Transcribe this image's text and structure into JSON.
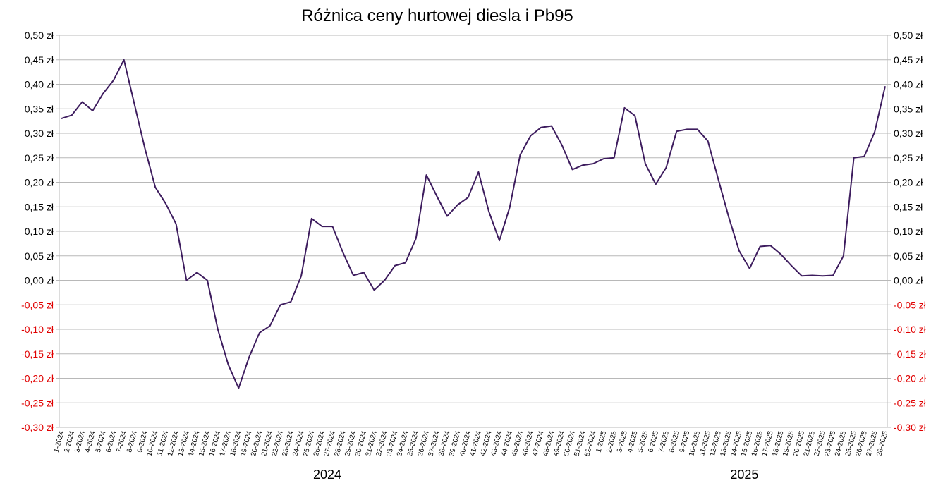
{
  "chart_data": {
    "type": "line",
    "title": "Różnica ceny hurtowej diesla i Pb95",
    "ylim": [
      -0.3,
      0.5
    ],
    "y_tick_step": 0.05,
    "y_tick_labels": [
      "0,50 zł",
      "0,45 zł",
      "0,40 zł",
      "0,35 zł",
      "0,30 zł",
      "0,25 zł",
      "0,20 zł",
      "0,15 zł",
      "0,10 zł",
      "0,05 zł",
      "0,00 zł",
      "-0,05 zł",
      "-0,10 zł",
      "-0,15 zł",
      "-0,20 zł",
      "-0,25 zł",
      "-0,30 zł"
    ],
    "y_axes": "left and right",
    "negative_label_color": "#e00000",
    "positive_label_color": "#000000",
    "line_color": "#3d1c5e",
    "grid": true,
    "categories": [
      "1-2024",
      "2-2024",
      "3-2024",
      "4-2024",
      "5-2024",
      "6-2024",
      "7-2024",
      "8-2024",
      "9-2024",
      "10-2024",
      "11-2024",
      "12-2024",
      "13-2024",
      "14-2024",
      "15-2024",
      "16-2024",
      "17-2024",
      "18-2024",
      "19-2024",
      "20-2024",
      "21-2024",
      "22-2024",
      "23-2024",
      "24-2024",
      "25-2024",
      "26-2024",
      "27-2024",
      "28-2024",
      "29-2024",
      "30-2024",
      "31-2024",
      "32-2024",
      "33-2024",
      "34-2024",
      "35-2024",
      "36-2024",
      "37-2024",
      "38-2024",
      "39-2024",
      "40-2024",
      "41-2024",
      "42-2024",
      "43-2024",
      "44-2024",
      "45-2024",
      "46-2024",
      "47-2024",
      "48-2024",
      "49-2024",
      "50-2024",
      "51-2024",
      "52-2024",
      "1-2025",
      "2-2025",
      "3-2025",
      "4-2025",
      "5-2025",
      "6-2025",
      "7-2025",
      "8-2025",
      "9-2025",
      "10-2025",
      "11-2025",
      "12-2025",
      "13-2025",
      "14-2025",
      "15-2025",
      "16-2025",
      "17-2025",
      "18-2025",
      "19-2025",
      "20-2025",
      "21-2025",
      "22-2025",
      "23-2025",
      "24-2025",
      "25-2025",
      "26-2025",
      "27-2025",
      "28-2025"
    ],
    "series": [
      {
        "values": [
          0.33,
          0.337,
          0.364,
          0.346,
          0.381,
          0.408,
          0.45,
          0.36,
          0.27,
          0.19,
          0.157,
          0.115,
          0.0,
          0.016,
          0.0,
          -0.1,
          -0.172,
          -0.22,
          -0.157,
          -0.107,
          -0.093,
          -0.05,
          -0.044,
          0.009,
          0.126,
          0.11,
          0.11,
          0.057,
          0.01,
          0.016,
          -0.02,
          0.0,
          0.03,
          0.036,
          0.085,
          0.215,
          0.172,
          0.131,
          0.154,
          0.169,
          0.221,
          0.14,
          0.081,
          0.149,
          0.256,
          0.295,
          0.312,
          0.315,
          0.276,
          0.226,
          0.235,
          0.238,
          0.248,
          0.25,
          0.352,
          0.336,
          0.238,
          0.196,
          0.23,
          0.304,
          0.308,
          0.308,
          0.284,
          0.206,
          0.129,
          0.06,
          0.024,
          0.069,
          0.071,
          0.053,
          0.03,
          0.009,
          0.01,
          0.009,
          0.01,
          0.05,
          0.25,
          0.253,
          0.303,
          0.396
        ]
      }
    ],
    "year_labels": [
      {
        "label": "2024",
        "start_index": 0,
        "end_index": 51
      },
      {
        "label": "2025",
        "start_index": 52,
        "end_index": 79
      }
    ]
  }
}
